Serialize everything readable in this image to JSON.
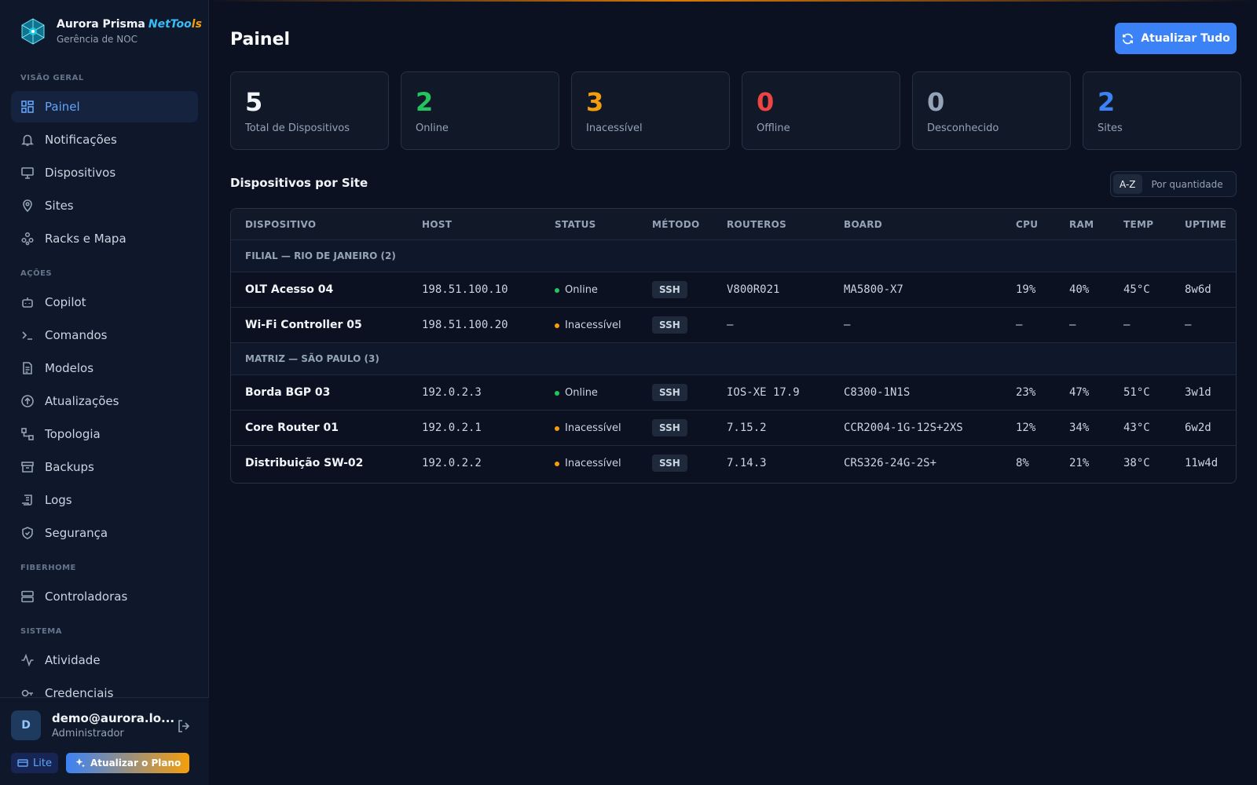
{
  "brand": {
    "name": "Aurora Prisma",
    "tag_part1": "NetToo",
    "tag_part2": "ls",
    "subtitle": "Gerência de NOC"
  },
  "sidebar": {
    "sections": [
      {
        "label": "VISÃO GERAL",
        "items": [
          {
            "label": "Painel",
            "icon": "dashboard-icon",
            "active": true
          },
          {
            "label": "Notificações",
            "icon": "bell-icon"
          },
          {
            "label": "Dispositivos",
            "icon": "monitor-icon"
          },
          {
            "label": "Sites",
            "icon": "map-pin-icon"
          },
          {
            "label": "Racks e Mapa",
            "icon": "network-icon"
          }
        ]
      },
      {
        "label": "AÇÕES",
        "items": [
          {
            "label": "Copilot",
            "icon": "bot-icon"
          },
          {
            "label": "Comandos",
            "icon": "terminal-icon"
          },
          {
            "label": "Modelos",
            "icon": "file-icon"
          },
          {
            "label": "Atualizações",
            "icon": "upload-icon"
          },
          {
            "label": "Topologia",
            "icon": "topology-icon"
          },
          {
            "label": "Backups",
            "icon": "archive-icon"
          },
          {
            "label": "Logs",
            "icon": "scroll-icon"
          },
          {
            "label": "Segurança",
            "icon": "shield-icon"
          }
        ]
      },
      {
        "label": "FIBERHOME",
        "items": [
          {
            "label": "Controladoras",
            "icon": "server-icon"
          }
        ]
      },
      {
        "label": "SISTEMA",
        "items": [
          {
            "label": "Atividade",
            "icon": "activity-icon"
          },
          {
            "label": "Credenciais",
            "icon": "key-icon"
          }
        ]
      }
    ]
  },
  "user": {
    "initial": "D",
    "email": "demo@aurora.lo...",
    "role": "Administrador",
    "plan": "Lite",
    "upgrade_label": "Atualizar o Plano"
  },
  "header": {
    "title": "Painel",
    "refresh_label": "Atualizar Tudo"
  },
  "stats": [
    {
      "value": "5",
      "label": "Total de Dispositivos",
      "color": "#f1f5f9"
    },
    {
      "value": "2",
      "label": "Online",
      "color": "#22c55e"
    },
    {
      "value": "3",
      "label": "Inacessível",
      "color": "#f59e0b"
    },
    {
      "value": "0",
      "label": "Offline",
      "color": "#ef4444"
    },
    {
      "value": "0",
      "label": "Desconhecido",
      "color": "#94a3b8"
    },
    {
      "value": "2",
      "label": "Sites",
      "color": "#3b82f6"
    }
  ],
  "devices_section": {
    "title": "Dispositivos por Site",
    "sort_options": [
      "A-Z",
      "Por quantidade"
    ],
    "sort_active": "A-Z"
  },
  "table": {
    "columns": [
      "DISPOSITIVO",
      "HOST",
      "STATUS",
      "MÉTODO",
      "ROUTEROS",
      "BOARD",
      "CPU",
      "RAM",
      "TEMP",
      "UPTIME"
    ],
    "groups": [
      {
        "label": "FILIAL — RIO DE JANEIRO (2)",
        "rows": [
          {
            "name": "OLT Acesso 04",
            "host": "198.51.100.10",
            "status": "Online",
            "status_color": "#22c55e",
            "method": "SSH",
            "routeros": "V800R021",
            "board": "MA5800-X7",
            "cpu": "19%",
            "ram": "40%",
            "temp": "45°C",
            "uptime": "8w6d"
          },
          {
            "name": "Wi-Fi Controller 05",
            "host": "198.51.100.20",
            "status": "Inacessível",
            "status_color": "#f59e0b",
            "method": "SSH",
            "routeros": "—",
            "board": "—",
            "cpu": "—",
            "ram": "—",
            "temp": "—",
            "uptime": "—"
          }
        ]
      },
      {
        "label": "MATRIZ — SÃO PAULO (3)",
        "rows": [
          {
            "name": "Borda BGP 03",
            "host": "192.0.2.3",
            "status": "Online",
            "status_color": "#22c55e",
            "method": "SSH",
            "routeros": "IOS-XE 17.9",
            "board": "C8300-1N1S",
            "cpu": "23%",
            "ram": "47%",
            "temp": "51°C",
            "uptime": "3w1d"
          },
          {
            "name": "Core Router 01",
            "host": "192.0.2.1",
            "status": "Inacessível",
            "status_color": "#f59e0b",
            "method": "SSH",
            "routeros": "7.15.2",
            "board": "CCR2004-1G-12S+2XS",
            "cpu": "12%",
            "ram": "34%",
            "temp": "43°C",
            "uptime": "6w2d"
          },
          {
            "name": "Distribuição SW-02",
            "host": "192.0.2.2",
            "status": "Inacessível",
            "status_color": "#f59e0b",
            "method": "SSH",
            "routeros": "7.14.3",
            "board": "CRS326-24G-2S+",
            "cpu": "8%",
            "ram": "21%",
            "temp": "38°C",
            "uptime": "11w4d"
          }
        ]
      }
    ]
  }
}
